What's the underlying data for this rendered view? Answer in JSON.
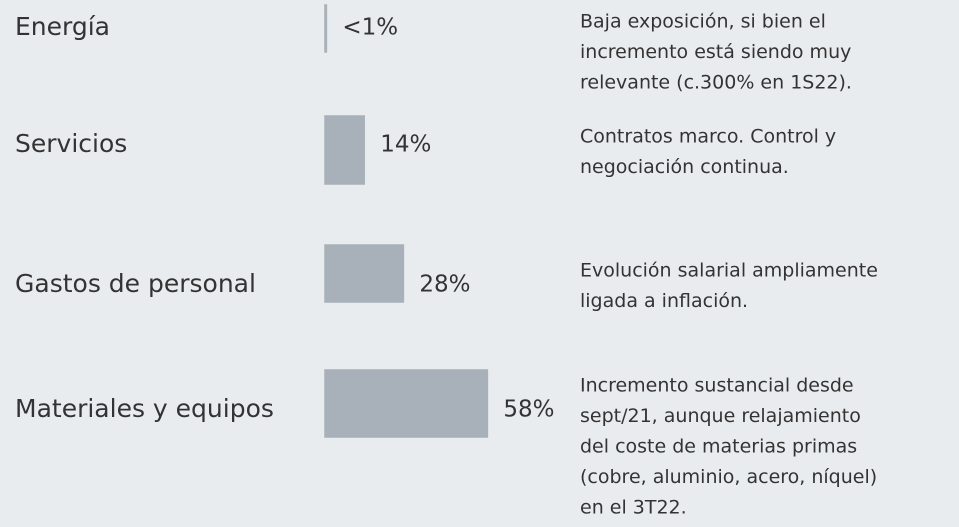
{
  "chart_data": {
    "type": "bar",
    "categories": [
      "Energía",
      "Servicios",
      "Gastos de personal",
      "Materiales y equipos"
    ],
    "values": [
      0.5,
      14,
      28,
      58
    ],
    "value_labels": [
      "<1%",
      "14%",
      "28%",
      "58%"
    ],
    "color": "#a8b1b9",
    "notes": [
      [
        "Baja exposición, si bien el",
        "incremento está siendo muy",
        "relevante (c.300% en 1S22)."
      ],
      [
        "Contratos marco. Control y",
        "negociación continua."
      ],
      [
        "Evolución salarial ampliamente",
        "ligada a inflación."
      ],
      [
        "Incremento sustancial desde",
        "sept/21, aunque relajamiento",
        "del coste de materias primas",
        "(cobre, aluminio, acero, níquel)",
        "en el 3T22."
      ]
    ]
  }
}
